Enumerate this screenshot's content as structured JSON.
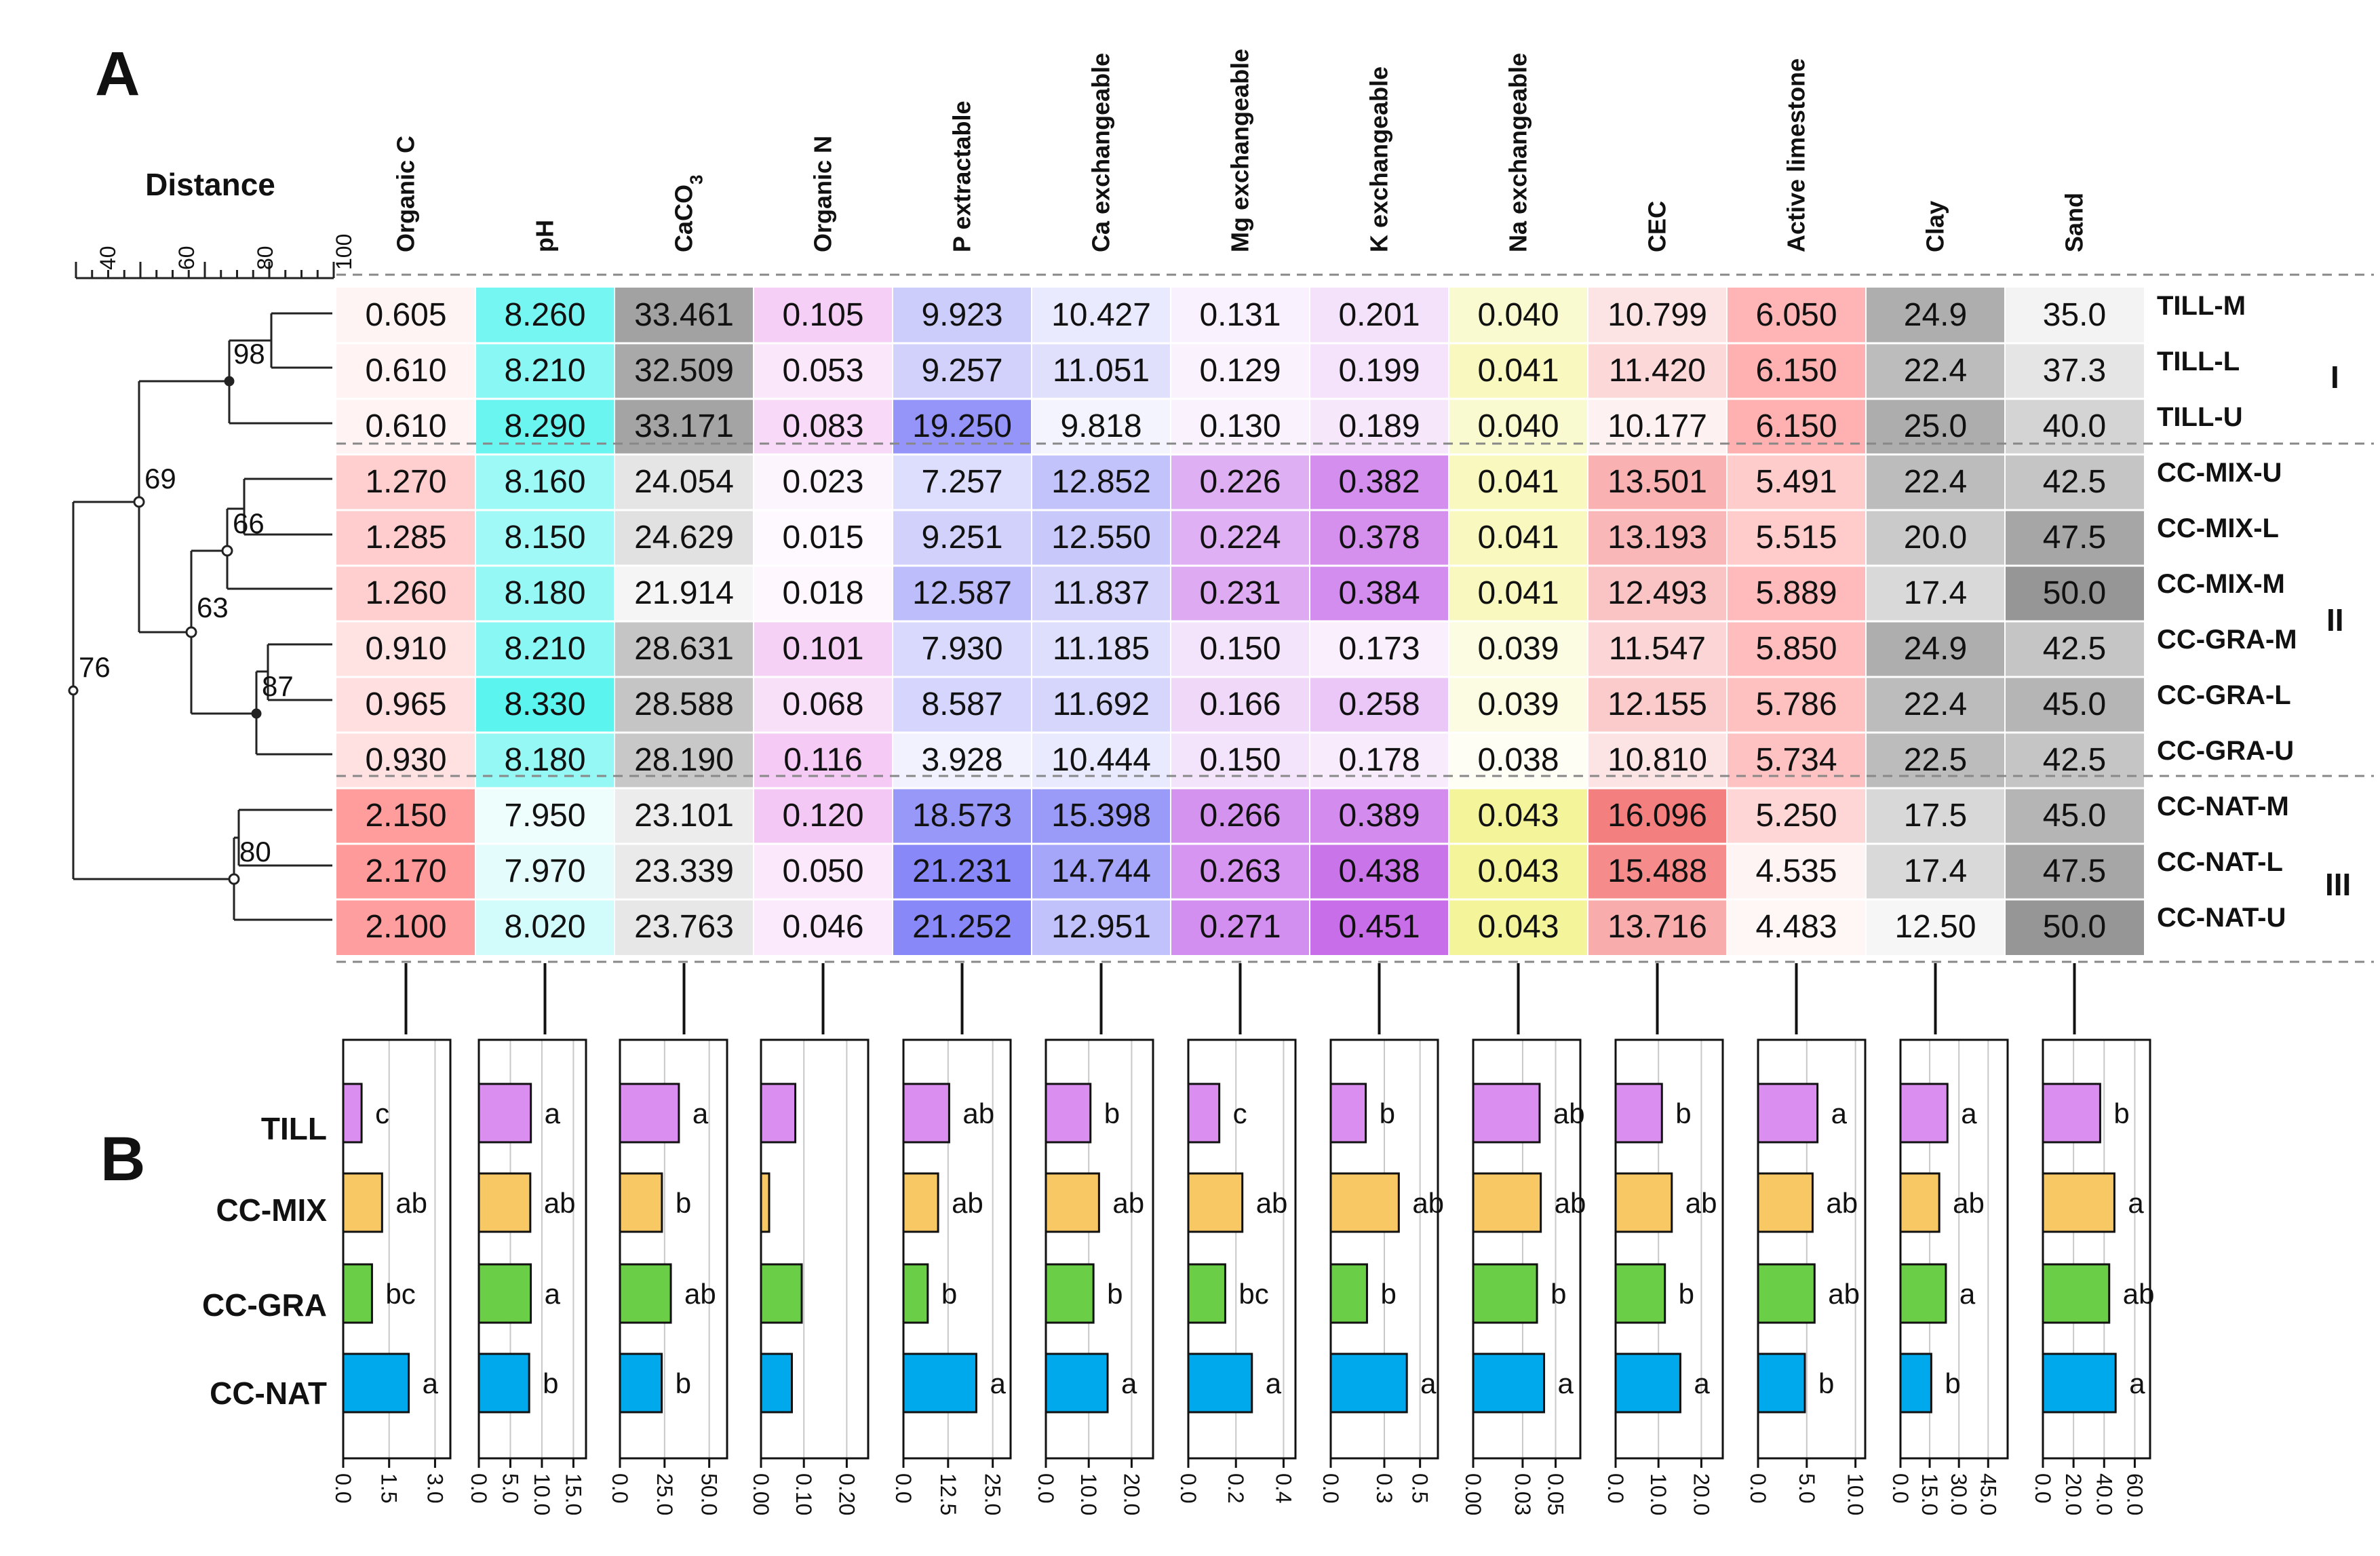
{
  "panels": {
    "a": "A",
    "b": "B"
  },
  "dendrogram": {
    "title": "Distance",
    "axis_ticks": [
      40,
      60,
      80,
      100
    ],
    "axis_tick_labels": [
      "40",
      "60",
      "80",
      "100"
    ],
    "node_labels": [
      "98",
      "69",
      "66",
      "63",
      "76",
      "87",
      "80"
    ]
  },
  "variables": [
    "Organic C",
    "pH",
    "CaCO",
    "Organic N",
    "P extractable",
    "Ca exchangeable",
    "Mg exchangeable",
    "K exchangeable",
    "Na exchangeable",
    "CEC",
    "Active limestone",
    "Clay",
    "Sand"
  ],
  "caco3_subscript": "3",
  "samples": [
    "TILL-M",
    "TILL-L",
    "TILL-U",
    "CC-MIX-U",
    "CC-MIX-L",
    "CC-MIX-M",
    "CC-GRA-M",
    "CC-GRA-L",
    "CC-GRA-U",
    "CC-NAT-M",
    "CC-NAT-L",
    "CC-NAT-U"
  ],
  "cluster_groups": [
    "I",
    "II",
    "III"
  ],
  "table": [
    [
      "0.605",
      "8.260",
      "33.461",
      "0.105",
      "9.923",
      "10.427",
      "0.131",
      "0.201",
      "0.040",
      "10.799",
      "6.050",
      "24.9",
      "35.0"
    ],
    [
      "0.610",
      "8.210",
      "32.509",
      "0.053",
      "9.257",
      "11.051",
      "0.129",
      "0.199",
      "0.041",
      "11.420",
      "6.150",
      "22.4",
      "37.3"
    ],
    [
      "0.610",
      "8.290",
      "33.171",
      "0.083",
      "19.250",
      "9.818",
      "0.130",
      "0.189",
      "0.040",
      "10.177",
      "6.150",
      "25.0",
      "40.0"
    ],
    [
      "1.270",
      "8.160",
      "24.054",
      "0.023",
      "7.257",
      "12.852",
      "0.226",
      "0.382",
      "0.041",
      "13.501",
      "5.491",
      "22.4",
      "42.5"
    ],
    [
      "1.285",
      "8.150",
      "24.629",
      "0.015",
      "9.251",
      "12.550",
      "0.224",
      "0.378",
      "0.041",
      "13.193",
      "5.515",
      "20.0",
      "47.5"
    ],
    [
      "1.260",
      "8.180",
      "21.914",
      "0.018",
      "12.587",
      "11.837",
      "0.231",
      "0.384",
      "0.041",
      "12.493",
      "5.889",
      "17.4",
      "50.0"
    ],
    [
      "0.910",
      "8.210",
      "28.631",
      "0.101",
      "7.930",
      "11.185",
      "0.150",
      "0.173",
      "0.039",
      "11.547",
      "5.850",
      "24.9",
      "42.5"
    ],
    [
      "0.965",
      "8.330",
      "28.588",
      "0.068",
      "8.587",
      "11.692",
      "0.166",
      "0.258",
      "0.039",
      "12.155",
      "5.786",
      "22.4",
      "45.0"
    ],
    [
      "0.930",
      "8.180",
      "28.190",
      "0.116",
      "3.928",
      "10.444",
      "0.150",
      "0.178",
      "0.038",
      "10.810",
      "5.734",
      "22.5",
      "42.5"
    ],
    [
      "2.150",
      "7.950",
      "23.101",
      "0.120",
      "18.573",
      "15.398",
      "0.266",
      "0.389",
      "0.043",
      "16.096",
      "5.250",
      "17.5",
      "45.0"
    ],
    [
      "2.170",
      "7.970",
      "23.339",
      "0.050",
      "21.231",
      "14.744",
      "0.263",
      "0.438",
      "0.043",
      "15.488",
      "4.535",
      "17.4",
      "47.5"
    ],
    [
      "2.100",
      "8.020",
      "23.763",
      "0.046",
      "21.252",
      "12.951",
      "0.271",
      "0.451",
      "0.043",
      "13.716",
      "4.483",
      "12.50",
      "50.0"
    ]
  ],
  "column_colors": [
    "#ff6f6f",
    "#15f0e8",
    "#7a7a7a",
    "#f0b0f0",
    "#5555f5",
    "#6f6ff5",
    "#c060e8",
    "#b030e0",
    "#f0f070",
    "#f04848",
    "#ff8f8f",
    "#8a8a8a",
    "#6a6a6a"
  ],
  "chart_data": {
    "type": "bar",
    "orientation": "horizontal",
    "categories": [
      "TILL",
      "CC-MIX",
      "CC-GRA",
      "CC-NAT"
    ],
    "bar_colors": [
      "#d98ef0",
      "#f7c863",
      "#6acf46",
      "#00a8ec"
    ],
    "facets": [
      {
        "variable": "Organic C",
        "xlim": [
          0,
          3.5
        ],
        "ticks": [
          0,
          1.5,
          3
        ],
        "tick_labels": [
          "0.0",
          "1.5",
          "3.0"
        ],
        "values": [
          0.6,
          1.27,
          0.94,
          2.14
        ],
        "letters": [
          "c",
          "ab",
          "bc",
          "a"
        ]
      },
      {
        "variable": "pH",
        "xlim": [
          0,
          17
        ],
        "ticks": [
          0,
          5,
          10,
          15
        ],
        "tick_labels": [
          "0.0",
          "5.0",
          "10.0",
          "15.0"
        ],
        "values": [
          8.25,
          8.16,
          8.24,
          7.98
        ],
        "letters": [
          "a",
          "ab",
          "a",
          "b"
        ]
      },
      {
        "variable": "CaCO3",
        "xlim": [
          0,
          60
        ],
        "ticks": [
          0,
          25,
          50
        ],
        "tick_labels": [
          "0.0",
          "25.0",
          "50.0"
        ],
        "values": [
          33.0,
          23.5,
          28.5,
          23.4
        ],
        "letters": [
          "a",
          "b",
          "ab",
          "b"
        ]
      },
      {
        "variable": "Organic N",
        "xlim": [
          0,
          0.25
        ],
        "ticks": [
          0,
          0.1,
          0.2
        ],
        "tick_labels": [
          "0.00",
          "0.10",
          "0.20"
        ],
        "values": [
          0.08,
          0.019,
          0.095,
          0.072
        ],
        "letters": [
          "",
          "",
          "",
          ""
        ]
      },
      {
        "variable": "P extractable",
        "xlim": [
          0,
          30
        ],
        "ticks": [
          0,
          12.5,
          25
        ],
        "tick_labels": [
          "0.0",
          "12.5",
          "25.0"
        ],
        "values": [
          12.8,
          9.7,
          6.8,
          20.4
        ],
        "letters": [
          "ab",
          "ab",
          "b",
          "a"
        ]
      },
      {
        "variable": "Ca exchangeable",
        "xlim": [
          0,
          25
        ],
        "ticks": [
          0,
          10,
          20
        ],
        "tick_labels": [
          "0.0",
          "10.0",
          "20.0"
        ],
        "values": [
          10.4,
          12.4,
          11.1,
          14.4
        ],
        "letters": [
          "b",
          "ab",
          "b",
          "a"
        ]
      },
      {
        "variable": "Mg exchangeable",
        "xlim": [
          0,
          0.45
        ],
        "ticks": [
          0,
          0.2,
          0.4
        ],
        "tick_labels": [
          "0.0",
          "0.2",
          "0.4"
        ],
        "values": [
          0.13,
          0.227,
          0.155,
          0.267
        ],
        "letters": [
          "c",
          "ab",
          "bc",
          "a"
        ]
      },
      {
        "variable": "K exchangeable",
        "xlim": [
          0,
          0.6
        ],
        "ticks": [
          0,
          0.3,
          0.5
        ],
        "tick_labels": [
          "0.0",
          "0.3",
          "0.5"
        ],
        "values": [
          0.196,
          0.381,
          0.203,
          0.426
        ],
        "letters": [
          "b",
          "ab",
          "b",
          "a"
        ]
      },
      {
        "variable": "Na exchangeable",
        "xlim": [
          0,
          0.065
        ],
        "ticks": [
          0,
          0.03,
          0.05
        ],
        "tick_labels": [
          "0.00",
          "0.03",
          "0.05"
        ],
        "values": [
          0.0403,
          0.041,
          0.0387,
          0.043
        ],
        "letters": [
          "ab",
          "ab",
          "b",
          "a"
        ]
      },
      {
        "variable": "CEC",
        "xlim": [
          0,
          25
        ],
        "ticks": [
          0,
          10,
          20
        ],
        "tick_labels": [
          "0.0",
          "10.0",
          "20.0"
        ],
        "values": [
          10.8,
          13.1,
          11.5,
          15.1
        ],
        "letters": [
          "b",
          "ab",
          "b",
          "a"
        ]
      },
      {
        "variable": "Active limestone",
        "xlim": [
          0,
          11
        ],
        "ticks": [
          0,
          5,
          10
        ],
        "tick_labels": [
          "0.0",
          "5.0",
          "10.0"
        ],
        "values": [
          6.1,
          5.6,
          5.8,
          4.8
        ],
        "letters": [
          "a",
          "ab",
          "ab",
          "b"
        ]
      },
      {
        "variable": "Clay",
        "xlim": [
          0,
          55
        ],
        "ticks": [
          0,
          15,
          30,
          45
        ],
        "tick_labels": [
          "0.0",
          "15.0",
          "30.0",
          "45.0"
        ],
        "values": [
          24.1,
          19.9,
          23.3,
          15.8
        ],
        "letters": [
          "a",
          "ab",
          "a",
          "b"
        ]
      },
      {
        "variable": "Sand",
        "xlim": [
          0,
          70
        ],
        "ticks": [
          0,
          20,
          40,
          60
        ],
        "tick_labels": [
          "0.0",
          "20.0",
          "40.0",
          "60.0"
        ],
        "values": [
          37.4,
          46.7,
          43.3,
          47.5
        ],
        "letters": [
          "b",
          "a",
          "ab",
          "a"
        ]
      }
    ]
  }
}
